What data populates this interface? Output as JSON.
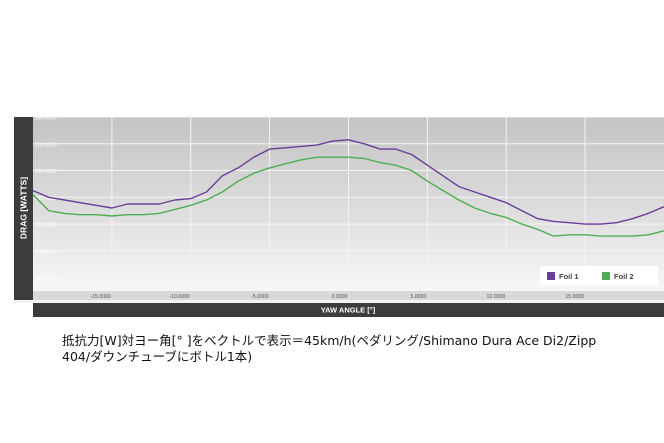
{
  "chart_data": {
    "type": "line",
    "xlabel": "YAW ANGLE [°]",
    "ylabel": "DRAG [WATTS]",
    "xlim": [
      -20,
      20
    ],
    "ylim": [
      175,
      240
    ],
    "x_ticks": [
      -15,
      -10,
      -5,
      0,
      5,
      10,
      15
    ],
    "x_tick_labels": [
      "-15.0000",
      "-10.0000",
      "-5.0000",
      "0.0000",
      "5.0000",
      "10.0000",
      "15.0000"
    ],
    "y_ticks": [
      180,
      190,
      200,
      210,
      220,
      230,
      240
    ],
    "y_tick_labels": [
      "180.0000",
      "190.0000",
      "200.0000",
      "210.0000",
      "220.0000",
      "230.0000",
      "240.0000"
    ],
    "grid": true,
    "legend": "bottom-right",
    "colors": {
      "Foil 1": "#6a3d9a",
      "Foil 2": "#4caf50"
    },
    "series": [
      {
        "name": "Foil 1",
        "x": [
          -20,
          -19,
          -18,
          -17,
          -16,
          -15,
          -14,
          -13,
          -12,
          -11,
          -10,
          -9,
          -8,
          -7,
          -6,
          -5,
          -4,
          -3,
          -2,
          -1,
          0,
          1,
          2,
          3,
          4,
          5,
          6,
          7,
          8,
          9,
          10,
          11,
          12,
          13,
          14,
          15,
          16,
          17,
          18,
          19,
          20
        ],
        "y": [
          212.5,
          210,
          209,
          208,
          207,
          206,
          207.5,
          207.5,
          207.5,
          209,
          209.5,
          212,
          218,
          221,
          225,
          228,
          228.5,
          229,
          229.5,
          231,
          231.5,
          230,
          228,
          228,
          226,
          222,
          218,
          214,
          212,
          210,
          208,
          205,
          202,
          201,
          200.5,
          200,
          200,
          200.5,
          202,
          204,
          206.5
        ]
      },
      {
        "name": "Foil 2",
        "x": [
          -20,
          -19,
          -18,
          -17,
          -16,
          -15,
          -14,
          -13,
          -12,
          -11,
          -10,
          -9,
          -8,
          -7,
          -6,
          -5,
          -4,
          -3,
          -2,
          -1,
          0,
          1,
          2,
          3,
          4,
          5,
          6,
          7,
          8,
          9,
          10,
          11,
          12,
          13,
          14,
          15,
          16,
          17,
          18,
          19,
          20
        ],
        "y": [
          211,
          205,
          204,
          203.5,
          203.5,
          203,
          203.5,
          203.5,
          204,
          205.5,
          207,
          209,
          212,
          216,
          219,
          221,
          222.5,
          224,
          225,
          225,
          225,
          224.5,
          223,
          222,
          220,
          216,
          212.5,
          209,
          206,
          204,
          202.5,
          200,
          198,
          195.5,
          196,
          196,
          195.5,
          195.5,
          195.5,
          196,
          197.5
        ]
      }
    ]
  },
  "caption": {
    "line1": "抵抗力[W]対ヨー角[° ]をベクトルで表示＝45km/h(ペダリング/Shimano Dura Ace Di2/Zipp",
    "line2": "404/ダウンチューブにボトル1本)"
  }
}
